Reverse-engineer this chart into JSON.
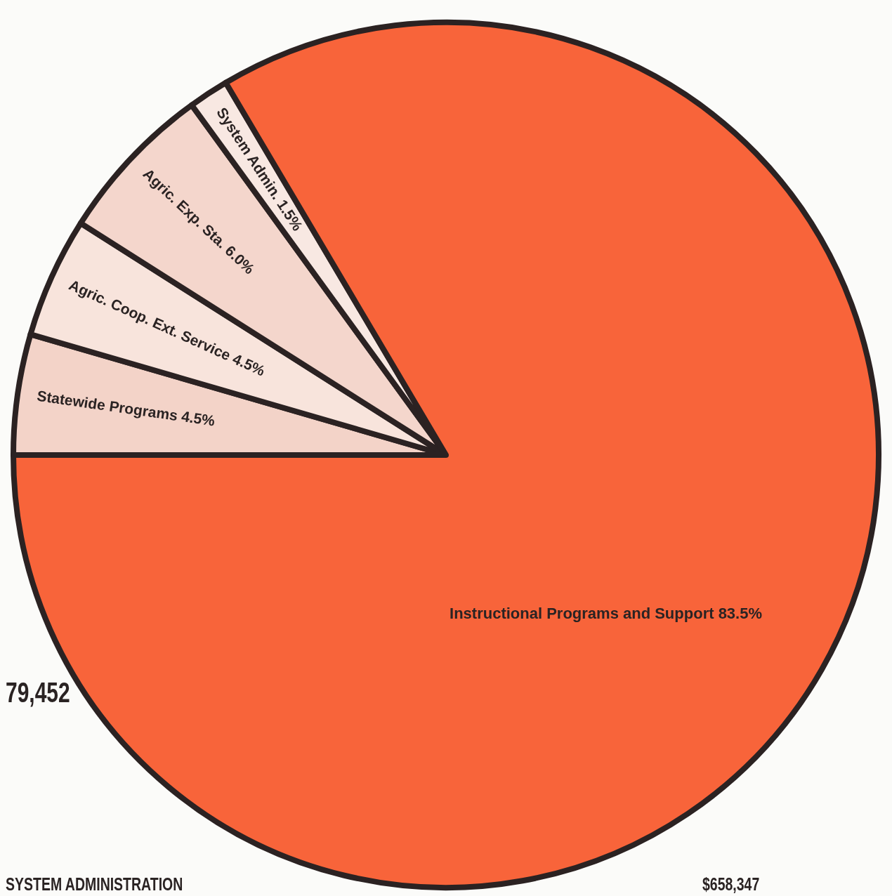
{
  "chart_data": {
    "type": "pie",
    "categories": [
      "Statewide Programs",
      "Agric. Coop. Ext. Service",
      "Agric. Exp. Sta.",
      "System Admin.",
      "Instructional Programs and Support"
    ],
    "values": [
      4.5,
      4.5,
      6.0,
      1.5,
      83.5
    ],
    "value_labels": [
      "4.5%",
      "4.5%",
      "6.0%",
      "1.5%",
      "83.5%"
    ],
    "colors": [
      "#f3d3c8",
      "#f8e4dc",
      "#f4d6cc",
      "#f8e8e2",
      "#f8643a"
    ],
    "annotations": [
      "79,452",
      "SYSTEM ADMINISTRATION",
      "$658,347"
    ]
  }
}
